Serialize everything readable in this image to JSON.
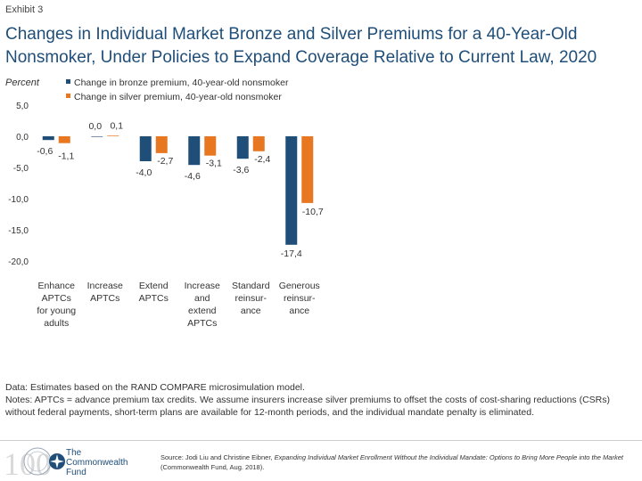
{
  "exhibit": "Exhibit 3",
  "title": "Changes in Individual Market Bronze and Silver Premiums for a 40-Year-Old Nonsmoker, Under Policies to Expand Coverage Relative to Current Law, 2020",
  "chart_data": {
    "type": "bar",
    "ylabel": "Percent",
    "ylim": [
      -20,
      5
    ],
    "yticks": [
      "5,0",
      "0,0",
      "-5,0",
      "-10,0",
      "-15,0",
      "-20,0"
    ],
    "ytick_values": [
      5,
      0,
      -5,
      -10,
      -15,
      -20
    ],
    "legend_position": "top-center",
    "categories": [
      [
        "Enhance",
        "APTCs",
        "for young",
        "adults"
      ],
      [
        "Increase",
        "APTCs"
      ],
      [
        "Extend",
        "APTCs"
      ],
      [
        "Increase",
        "and",
        "extend",
        "APTCs"
      ],
      [
        "Standard",
        "reinsur-",
        "ance"
      ],
      [
        "Generous",
        "reinsur-",
        "ance"
      ]
    ],
    "series": [
      {
        "name": "Change in bronze premium, 40-year-old nonsmoker",
        "color": "#1f4e79",
        "values": [
          -0.6,
          0.0,
          -4.0,
          -4.6,
          -3.6,
          -17.4
        ],
        "labels": [
          "-0,6",
          "0,0",
          "-4,0",
          "-4,6",
          "-3,6",
          "-17,4"
        ]
      },
      {
        "name": "Change in silver premium, 40-year-old nonsmoker",
        "color": "#e87722",
        "values": [
          -1.1,
          0.1,
          -2.7,
          -3.1,
          -2.4,
          -10.7
        ],
        "labels": [
          "-1,1",
          "0,1",
          "-2,7",
          "-3,1",
          "-2,4",
          "-10,7"
        ]
      }
    ]
  },
  "notes": {
    "data": "Data: Estimates based on the RAND COMPARE microsimulation model.",
    "notes": "Notes: APTCs = advance premium tax credits. We assume insurers increase silver premiums to offset the costs of cost-sharing reductions (CSRs) without federal payments, short-term plans are available for 12-month periods, and the individual mandate penalty is eliminated."
  },
  "logo": {
    "line1": "The",
    "line2": "Commonwealth",
    "line3": "Fund",
    "seal_text": "100"
  },
  "source": {
    "prefix": "Source: Jodi Liu and Christine Eibner, ",
    "title": "Expanding Individual Market Enrollment Without the Individual Mandate: Options to Bring More People into the Market",
    "suffix": " (Commonwealth Fund, Aug. 2018)."
  }
}
